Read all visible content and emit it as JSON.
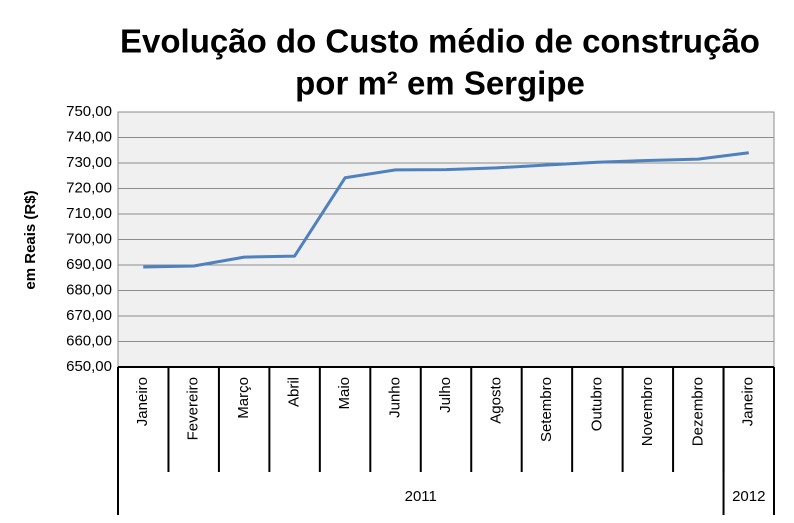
{
  "chart_data": {
    "type": "line",
    "title": [
      "Evolução do Custo médio de construção",
      "por m² em Sergipe"
    ],
    "y_label": "em Reais (R$)",
    "categories": [
      "Janeiro",
      "Fevereiro",
      "Março",
      "Abril",
      "Maio",
      "Junho",
      "Julho",
      "Agosto",
      "Setembro",
      "Outubro",
      "Novembro",
      "Dezembro",
      "Janeiro"
    ],
    "groups": [
      {
        "label": "2011",
        "count": 12
      },
      {
        "label": "2012",
        "count": 1
      }
    ],
    "values": [
      689.2,
      689.6,
      693.1,
      693.5,
      724.2,
      727.3,
      727.4,
      728.1,
      729.2,
      730.3,
      731.0,
      731.5,
      734.0
    ],
    "color": "#4f81bd",
    "ylim": [
      650,
      750
    ],
    "yticks": [
      {
        "value": 650,
        "label": "650,00"
      },
      {
        "value": 660,
        "label": "660,00"
      },
      {
        "value": 670,
        "label": "670,00"
      },
      {
        "value": 680,
        "label": "680,00"
      },
      {
        "value": 690,
        "label": "690,00"
      },
      {
        "value": 700,
        "label": "700,00"
      },
      {
        "value": 710,
        "label": "710,00"
      },
      {
        "value": 720,
        "label": "720,00"
      },
      {
        "value": 730,
        "label": "730,00"
      },
      {
        "value": 740,
        "label": "740,00"
      },
      {
        "value": 750,
        "label": "750,00"
      }
    ],
    "grid": true
  }
}
